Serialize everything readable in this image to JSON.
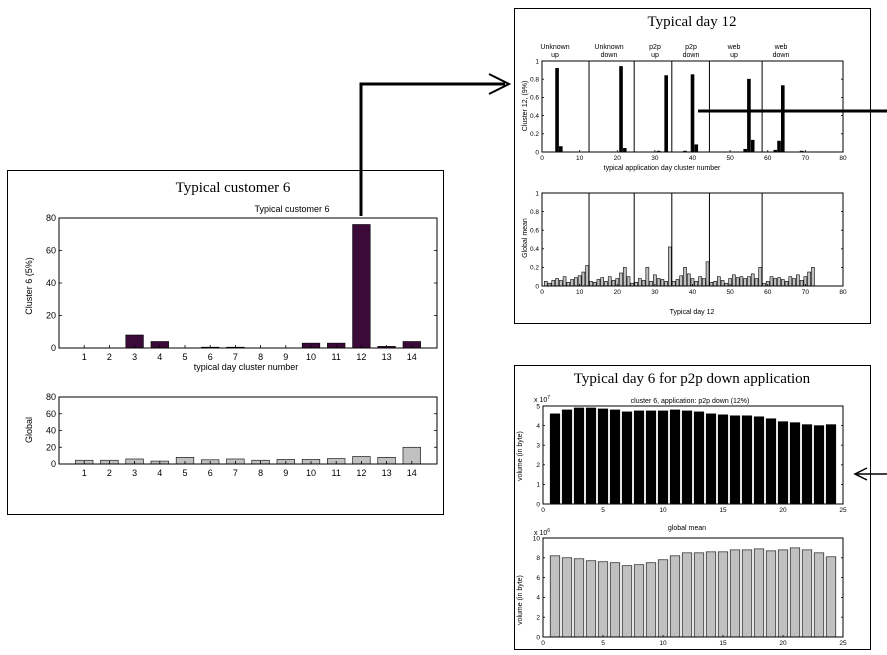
{
  "panels": {
    "customer": {
      "title": "Typical customer 6",
      "subtitle": "Typical customer 6",
      "top_ylabel": "Cluster 6 (5%)",
      "top_xlabel": "typical day cluster number",
      "bottom_ylabel": "Global"
    },
    "day12": {
      "title": "Typical day 12",
      "top_ylabel": "Cluster 12, (9%)",
      "top_xlabel": "typical application day cluster number",
      "bottom_ylabel": "Global mean",
      "bottom_xlabel": "Typical day 12",
      "group_labels": [
        {
          "line1": "Unknown",
          "line2": "up"
        },
        {
          "line1": "Unknown",
          "line2": "down"
        },
        {
          "line1": "p2p",
          "line2": "up"
        },
        {
          "line1": "p2p",
          "line2": "down"
        },
        {
          "line1": "web",
          "line2": "up"
        },
        {
          "line1": "web",
          "line2": "down"
        }
      ]
    },
    "day6": {
      "title": "Typical day 6 for p2p down application",
      "top_subtitle": "cluster 6, application: p2p down (12%)",
      "top_ylabel": "volume (in byte)",
      "top_exponent": "x 10",
      "top_exponent_power": "7",
      "bottom_subtitle": "global mean",
      "bottom_ylabel": "volume (in byte)",
      "bottom_exponent": "x 10",
      "bottom_exponent_power": "6"
    }
  },
  "colors": {
    "customer_bar": "#3c0a38",
    "global_bar": "#c0c0c0",
    "black_bar": "#000000",
    "axis": "#000000"
  },
  "chart_data": [
    {
      "id": "customer_top",
      "type": "bar",
      "title": "Typical customer 6",
      "xlabel": "typical day cluster number",
      "ylabel": "Cluster 6 (5%)",
      "categories": [
        "1",
        "2",
        "3",
        "4",
        "5",
        "6",
        "7",
        "8",
        "9",
        "10",
        "11",
        "12",
        "13",
        "14"
      ],
      "values": [
        0,
        0,
        8,
        4,
        0,
        0.5,
        0.5,
        0,
        0,
        3,
        3,
        76,
        1,
        4
      ],
      "xlim": [
        0,
        15
      ],
      "ylim": [
        0,
        80
      ],
      "yticks": [
        0,
        20,
        40,
        60,
        80
      ]
    },
    {
      "id": "customer_bottom",
      "type": "bar",
      "ylabel": "Global",
      "categories": [
        "1",
        "2",
        "3",
        "4",
        "5",
        "6",
        "7",
        "8",
        "9",
        "10",
        "11",
        "12",
        "13",
        "14"
      ],
      "values": [
        4.5,
        4.5,
        6,
        3.5,
        8,
        5,
        6,
        4.5,
        5.5,
        5.5,
        6.5,
        9,
        8,
        20
      ],
      "xlim": [
        0,
        15
      ],
      "ylim": [
        0,
        80
      ],
      "yticks": [
        0,
        20,
        40,
        60,
        80
      ]
    },
    {
      "id": "day12_top",
      "type": "bar",
      "title": "Typical day 12",
      "xlabel": "typical application day cluster number",
      "ylabel": "Cluster 12, (9%)",
      "xlim": [
        0,
        80
      ],
      "ylim": [
        0,
        1
      ],
      "xticks": [
        0,
        10,
        20,
        30,
        40,
        50,
        60,
        70,
        80
      ],
      "yticks": [
        0,
        0.2,
        0.4,
        0.6,
        0.8,
        1
      ],
      "separators": [
        12.5,
        24.5,
        34.5,
        44.5,
        58.5
      ],
      "x": [
        4,
        5,
        21,
        22,
        31,
        33,
        38,
        40,
        41,
        54,
        55,
        56,
        62,
        63,
        64,
        69
      ],
      "values": [
        0.92,
        0.06,
        0.94,
        0.04,
        0.01,
        0.84,
        0.01,
        0.85,
        0.08,
        0.03,
        0.8,
        0.13,
        0.02,
        0.12,
        0.73,
        0.01
      ]
    },
    {
      "id": "day12_bottom",
      "type": "bar",
      "xlabel": "Typical day 12",
      "ylabel": "Global mean",
      "xlim": [
        0,
        80
      ],
      "ylim": [
        0,
        1
      ],
      "xticks": [
        0,
        10,
        20,
        30,
        40,
        50,
        60,
        70,
        80
      ],
      "yticks": [
        0,
        0.2,
        0.4,
        0.6,
        0.8,
        1
      ],
      "separators": [
        12.5,
        24.5,
        34.5,
        44.5,
        58.5
      ],
      "x": [
        1,
        2,
        3,
        4,
        5,
        6,
        7,
        8,
        9,
        10,
        11,
        12,
        13,
        14,
        15,
        16,
        17,
        18,
        19,
        20,
        21,
        22,
        23,
        24,
        25,
        26,
        27,
        28,
        29,
        30,
        31,
        32,
        33,
        34,
        35,
        36,
        37,
        38,
        39,
        40,
        41,
        42,
        43,
        44,
        45,
        46,
        47,
        48,
        49,
        50,
        51,
        52,
        53,
        54,
        55,
        56,
        57,
        58,
        59,
        60,
        61,
        62,
        63,
        64,
        65,
        66,
        67,
        68,
        69,
        70,
        71,
        72
      ],
      "values": [
        0.05,
        0.03,
        0.06,
        0.08,
        0.06,
        0.1,
        0.04,
        0.07,
        0.09,
        0.11,
        0.15,
        0.22,
        0.05,
        0.04,
        0.07,
        0.09,
        0.05,
        0.1,
        0.06,
        0.08,
        0.14,
        0.2,
        0.1,
        0.03,
        0.04,
        0.08,
        0.06,
        0.2,
        0.05,
        0.12,
        0.08,
        0.07,
        0.05,
        0.42,
        0.05,
        0.07,
        0.11,
        0.2,
        0.13,
        0.08,
        0.05,
        0.1,
        0.08,
        0.26,
        0.04,
        0.05,
        0.1,
        0.06,
        0.03,
        0.08,
        0.12,
        0.09,
        0.1,
        0.08,
        0.1,
        0.13,
        0.08,
        0.2,
        0.03,
        0.05,
        0.1,
        0.08,
        0.09,
        0.07,
        0.05,
        0.1,
        0.08,
        0.12,
        0.06,
        0.1,
        0.15,
        0.2
      ]
    },
    {
      "id": "day6_top",
      "type": "bar",
      "title": "cluster 6, application: p2p down (12%)",
      "ylabel": "volume (in byte)",
      "xlim": [
        0,
        25
      ],
      "ylim": [
        0,
        5
      ],
      "xticks": [
        0,
        5,
        10,
        15,
        20,
        25
      ],
      "yticks": [
        0,
        1,
        2,
        3,
        4,
        5
      ],
      "x": [
        1,
        2,
        3,
        4,
        5,
        6,
        7,
        8,
        9,
        10,
        11,
        12,
        13,
        14,
        15,
        16,
        17,
        18,
        19,
        20,
        21,
        22,
        23,
        24
      ],
      "values": [
        4.6,
        4.8,
        4.9,
        4.9,
        4.85,
        4.8,
        4.7,
        4.75,
        4.75,
        4.75,
        4.8,
        4.75,
        4.7,
        4.6,
        4.55,
        4.5,
        4.5,
        4.45,
        4.35,
        4.2,
        4.15,
        4.05,
        4.0,
        4.05
      ]
    },
    {
      "id": "day6_bottom",
      "type": "bar",
      "title": "global mean",
      "ylabel": "volume (in byte)",
      "xlim": [
        0,
        25
      ],
      "ylim": [
        0,
        10
      ],
      "xticks": [
        0,
        5,
        10,
        15,
        20,
        25
      ],
      "yticks": [
        0,
        2,
        4,
        6,
        8,
        10
      ],
      "x": [
        1,
        2,
        3,
        4,
        5,
        6,
        7,
        8,
        9,
        10,
        11,
        12,
        13,
        14,
        15,
        16,
        17,
        18,
        19,
        20,
        21,
        22,
        23,
        24
      ],
      "values": [
        8.2,
        8.0,
        7.9,
        7.7,
        7.6,
        7.5,
        7.2,
        7.3,
        7.5,
        7.8,
        8.2,
        8.5,
        8.5,
        8.6,
        8.6,
        8.8,
        8.8,
        8.9,
        8.7,
        8.8,
        9.0,
        8.8,
        8.5,
        8.1
      ]
    }
  ]
}
